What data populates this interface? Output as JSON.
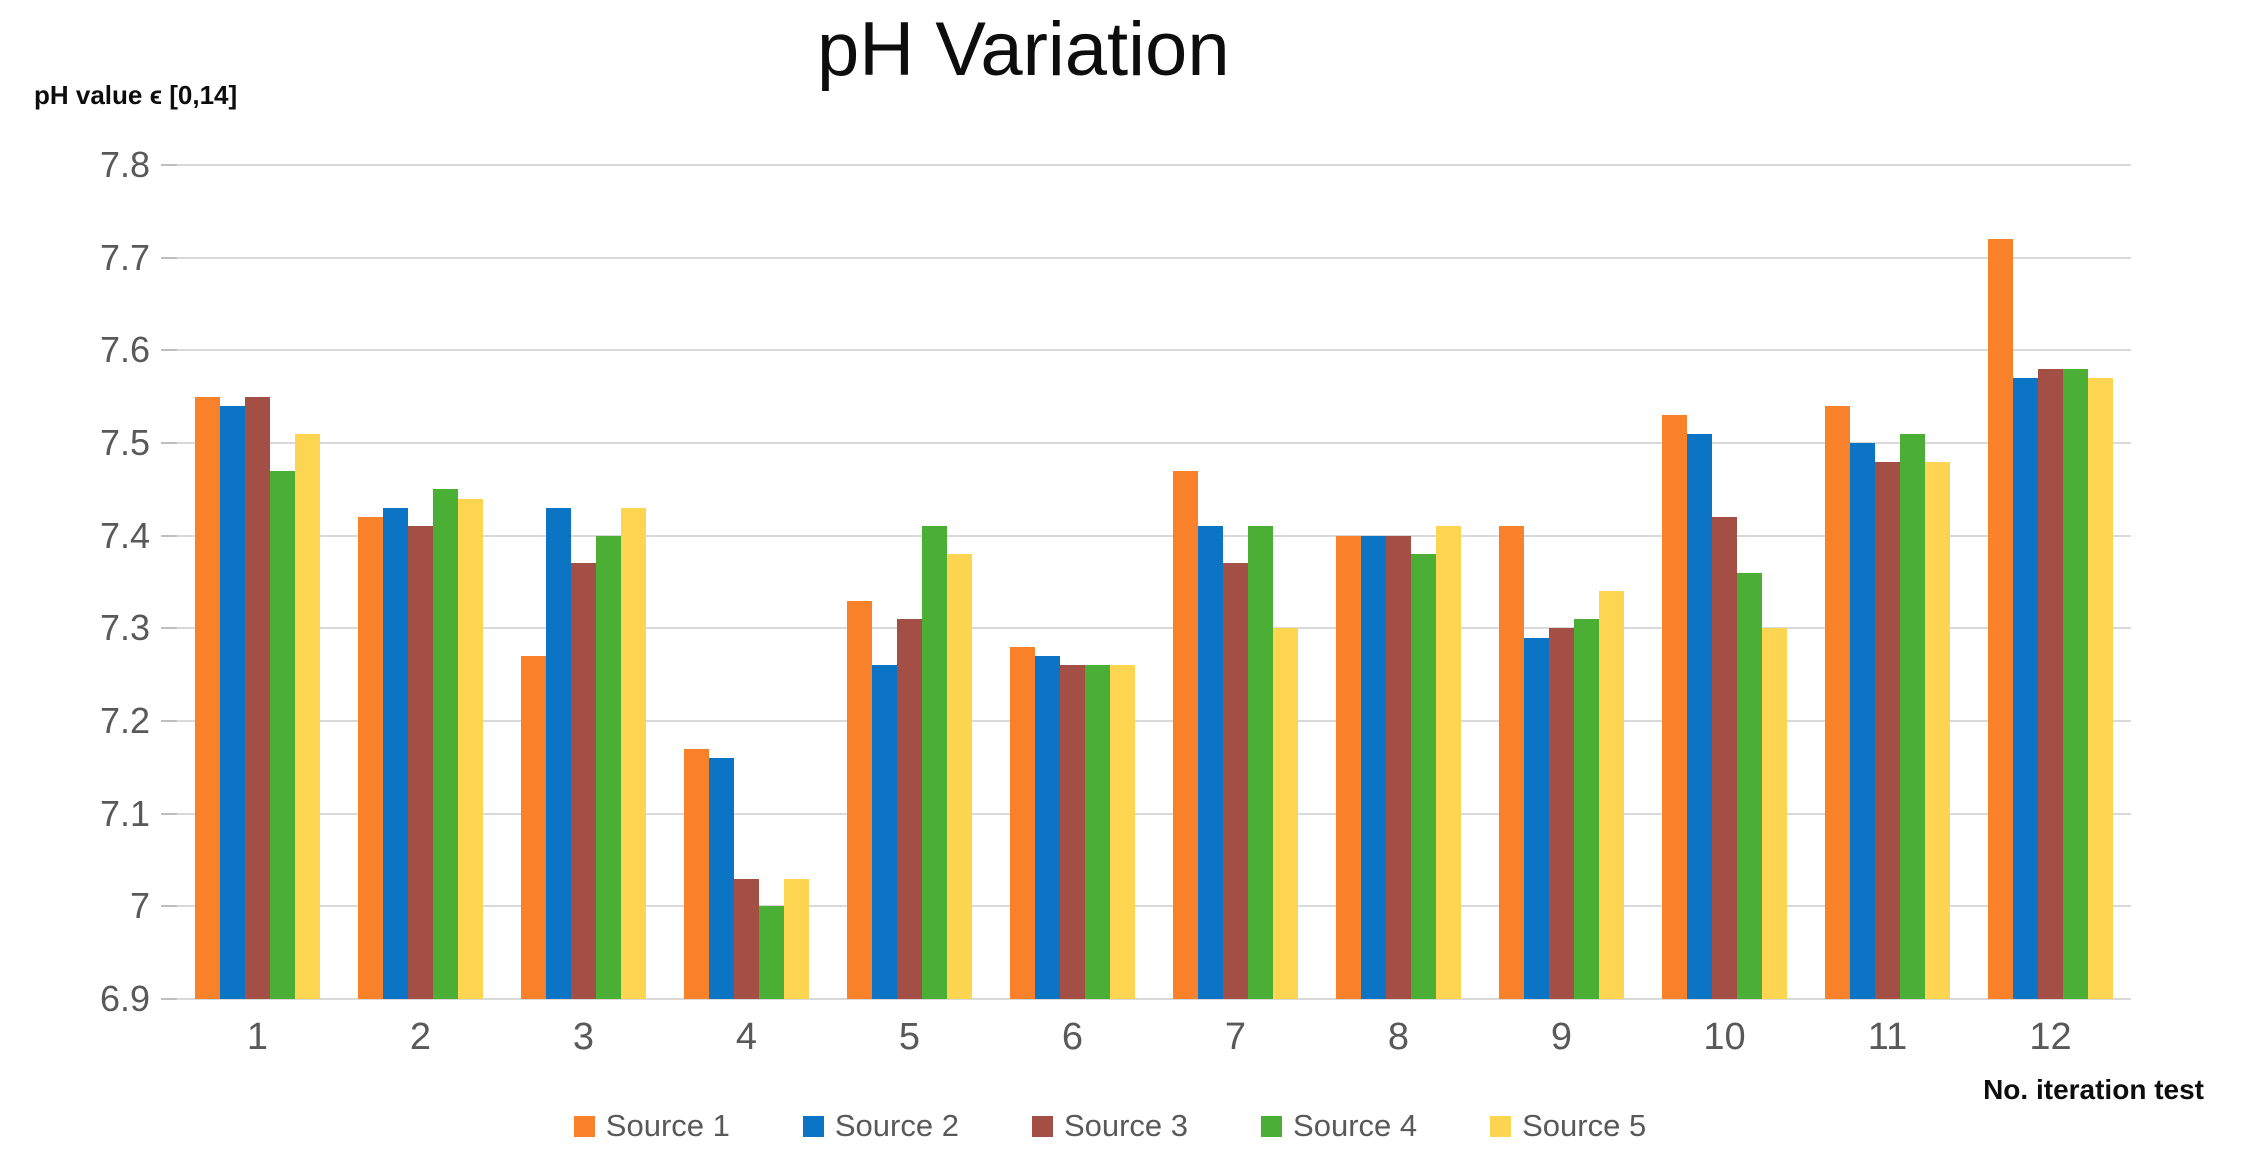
{
  "chart": {
    "title": "pH Variation",
    "y_axis_title": "pH value ϵ [0,14]",
    "x_axis_title": "No. iteration test"
  },
  "chart_data": {
    "type": "bar",
    "title": "pH Variation",
    "xlabel": "No. iteration test",
    "ylabel": "pH value ϵ [0,14]",
    "categories": [
      "1",
      "2",
      "3",
      "4",
      "5",
      "6",
      "7",
      "8",
      "9",
      "10",
      "11",
      "12"
    ],
    "series": [
      {
        "name": "Source 1",
        "color": "#F8812A",
        "values": [
          7.55,
          7.42,
          7.27,
          7.17,
          7.33,
          7.28,
          7.47,
          7.4,
          7.41,
          7.53,
          7.54,
          7.72
        ]
      },
      {
        "name": "Source 2",
        "color": "#0B74C5",
        "values": [
          7.54,
          7.43,
          7.43,
          7.16,
          7.26,
          7.27,
          7.41,
          7.4,
          7.29,
          7.51,
          7.5,
          7.57
        ]
      },
      {
        "name": "Source 3",
        "color": "#A34F45",
        "values": [
          7.55,
          7.41,
          7.37,
          7.03,
          7.31,
          7.26,
          7.37,
          7.4,
          7.3,
          7.42,
          7.48,
          7.58
        ]
      },
      {
        "name": "Source 4",
        "color": "#4BAE35",
        "values": [
          7.47,
          7.45,
          7.4,
          7.0,
          7.41,
          7.26,
          7.41,
          7.38,
          7.31,
          7.36,
          7.51,
          7.58
        ]
      },
      {
        "name": "Source 5",
        "color": "#FDD550",
        "values": [
          7.51,
          7.44,
          7.43,
          7.03,
          7.38,
          7.26,
          7.3,
          7.41,
          7.34,
          7.3,
          7.48,
          7.57
        ]
      }
    ],
    "ylim": [
      6.9,
      7.8
    ],
    "y_ticks": [
      "7.8",
      "7.7",
      "7.6",
      "7.5",
      "7.4",
      "7.3",
      "7.2",
      "7.1",
      "7",
      "6.9"
    ],
    "grid": "horizontal",
    "legend_position": "bottom"
  }
}
